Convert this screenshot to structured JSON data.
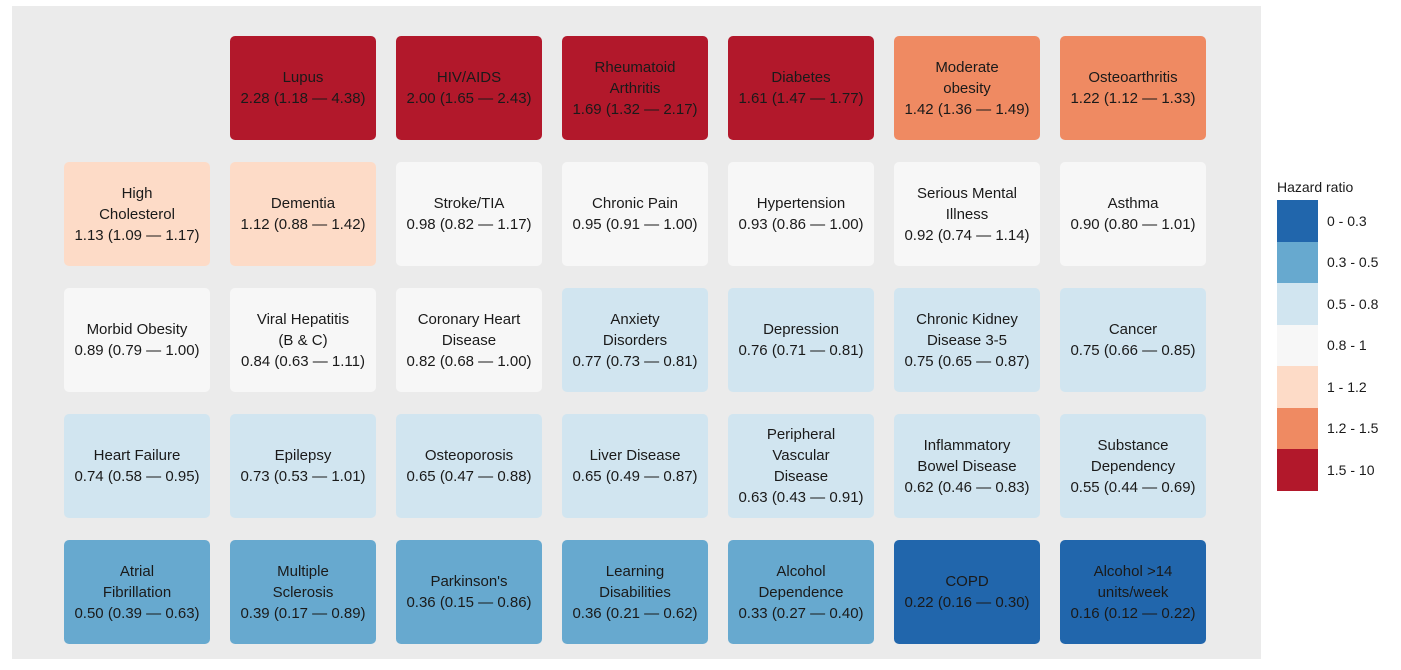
{
  "legend": {
    "title": "Hazard ratio",
    "bins": [
      {
        "label": "0 - 0.3",
        "color": "#2166ac"
      },
      {
        "label": "0.3 - 0.5",
        "color": "#67a9cf"
      },
      {
        "label": "0.5 - 0.8",
        "color": "#d1e5f0"
      },
      {
        "label": "0.8 - 1",
        "color": "#f7f7f7"
      },
      {
        "label": "1 - 1.2",
        "color": "#fddbc7"
      },
      {
        "label": "1.2 - 1.5",
        "color": "#ef8a62"
      },
      {
        "label": "1.5 - 10",
        "color": "#b2182b"
      }
    ]
  },
  "chart_data": {
    "type": "heatmap",
    "rows": 5,
    "cols": 7,
    "tiles": [
      {
        "row": 0,
        "col": 1,
        "name": "Lupus",
        "hr": 2.28,
        "label": "2.28 (1.18 — 4.38)",
        "bin": 6
      },
      {
        "row": 0,
        "col": 2,
        "name": "HIV/AIDS",
        "hr": 2.0,
        "label": "2.00 (1.65 — 2.43)",
        "bin": 6
      },
      {
        "row": 0,
        "col": 3,
        "name": "Rheumatoid\nArthritis",
        "hr": 1.69,
        "label": "1.69 (1.32 — 2.17)",
        "bin": 6
      },
      {
        "row": 0,
        "col": 4,
        "name": "Diabetes",
        "hr": 1.61,
        "label": "1.61 (1.47 — 1.77)",
        "bin": 6
      },
      {
        "row": 0,
        "col": 5,
        "name": "Moderate\nobesity",
        "hr": 1.42,
        "label": "1.42 (1.36 — 1.49)",
        "bin": 5
      },
      {
        "row": 0,
        "col": 6,
        "name": "Osteoarthritis",
        "hr": 1.22,
        "label": "1.22 (1.12 — 1.33)",
        "bin": 5
      },
      {
        "row": 1,
        "col": 0,
        "name": "High\nCholesterol",
        "hr": 1.13,
        "label": "1.13 (1.09 — 1.17)",
        "bin": 4
      },
      {
        "row": 1,
        "col": 1,
        "name": "Dementia",
        "hr": 1.12,
        "label": "1.12 (0.88 — 1.42)",
        "bin": 4
      },
      {
        "row": 1,
        "col": 2,
        "name": "Stroke/TIA",
        "hr": 0.98,
        "label": "0.98 (0.82 — 1.17)",
        "bin": 3
      },
      {
        "row": 1,
        "col": 3,
        "name": "Chronic Pain",
        "hr": 0.95,
        "label": "0.95 (0.91 — 1.00)",
        "bin": 3
      },
      {
        "row": 1,
        "col": 4,
        "name": "Hypertension",
        "hr": 0.93,
        "label": "0.93 (0.86 — 1.00)",
        "bin": 3
      },
      {
        "row": 1,
        "col": 5,
        "name": "Serious Mental\nIllness",
        "hr": 0.92,
        "label": "0.92 (0.74 — 1.14)",
        "bin": 3
      },
      {
        "row": 1,
        "col": 6,
        "name": "Asthma",
        "hr": 0.9,
        "label": "0.90 (0.80 — 1.01)",
        "bin": 3
      },
      {
        "row": 2,
        "col": 0,
        "name": "Morbid Obesity",
        "hr": 0.89,
        "label": "0.89 (0.79 — 1.00)",
        "bin": 3
      },
      {
        "row": 2,
        "col": 1,
        "name": "Viral Hepatitis\n(B & C)",
        "hr": 0.84,
        "label": "0.84 (0.63 — 1.11)",
        "bin": 3
      },
      {
        "row": 2,
        "col": 2,
        "name": "Coronary Heart\nDisease",
        "hr": 0.82,
        "label": "0.82 (0.68 — 1.00)",
        "bin": 3
      },
      {
        "row": 2,
        "col": 3,
        "name": "Anxiety\nDisorders",
        "hr": 0.77,
        "label": "0.77 (0.73 — 0.81)",
        "bin": 2
      },
      {
        "row": 2,
        "col": 4,
        "name": "Depression",
        "hr": 0.76,
        "label": "0.76 (0.71 — 0.81)",
        "bin": 2
      },
      {
        "row": 2,
        "col": 5,
        "name": "Chronic Kidney\nDisease 3-5",
        "hr": 0.75,
        "label": "0.75 (0.65 — 0.87)",
        "bin": 2
      },
      {
        "row": 2,
        "col": 6,
        "name": "Cancer",
        "hr": 0.75,
        "label": "0.75 (0.66 — 0.85)",
        "bin": 2
      },
      {
        "row": 3,
        "col": 0,
        "name": "Heart Failure",
        "hr": 0.74,
        "label": "0.74 (0.58 — 0.95)",
        "bin": 2
      },
      {
        "row": 3,
        "col": 1,
        "name": "Epilepsy",
        "hr": 0.73,
        "label": "0.73 (0.53 — 1.01)",
        "bin": 2
      },
      {
        "row": 3,
        "col": 2,
        "name": "Osteoporosis",
        "hr": 0.65,
        "label": "0.65 (0.47 — 0.88)",
        "bin": 2
      },
      {
        "row": 3,
        "col": 3,
        "name": "Liver Disease",
        "hr": 0.65,
        "label": "0.65 (0.49 — 0.87)",
        "bin": 2
      },
      {
        "row": 3,
        "col": 4,
        "name": "Peripheral\nVascular\nDisease",
        "hr": 0.63,
        "label": "0.63 (0.43 — 0.91)",
        "bin": 2
      },
      {
        "row": 3,
        "col": 5,
        "name": "Inflammatory\nBowel Disease",
        "hr": 0.62,
        "label": "0.62 (0.46 — 0.83)",
        "bin": 2
      },
      {
        "row": 3,
        "col": 6,
        "name": "Substance\nDependency",
        "hr": 0.55,
        "label": "0.55 (0.44 — 0.69)",
        "bin": 2
      },
      {
        "row": 4,
        "col": 0,
        "name": "Atrial\nFibrillation",
        "hr": 0.5,
        "label": "0.50 (0.39 — 0.63)",
        "bin": 1
      },
      {
        "row": 4,
        "col": 1,
        "name": "Multiple\nSclerosis",
        "hr": 0.39,
        "label": "0.39 (0.17 — 0.89)",
        "bin": 1
      },
      {
        "row": 4,
        "col": 2,
        "name": "Parkinson's",
        "hr": 0.36,
        "label": "0.36 (0.15 — 0.86)",
        "bin": 1
      },
      {
        "row": 4,
        "col": 3,
        "name": "Learning\nDisabilities",
        "hr": 0.36,
        "label": "0.36 (0.21 — 0.62)",
        "bin": 1
      },
      {
        "row": 4,
        "col": 4,
        "name": "Alcohol\nDependence",
        "hr": 0.33,
        "label": "0.33 (0.27 — 0.40)",
        "bin": 1
      },
      {
        "row": 4,
        "col": 5,
        "name": "COPD",
        "hr": 0.22,
        "label": "0.22 (0.16 — 0.30)",
        "bin": 0
      },
      {
        "row": 4,
        "col": 6,
        "name": "Alcohol >14\nunits/week",
        "hr": 0.16,
        "label": "0.16 (0.12 — 0.22)",
        "bin": 0
      }
    ]
  }
}
